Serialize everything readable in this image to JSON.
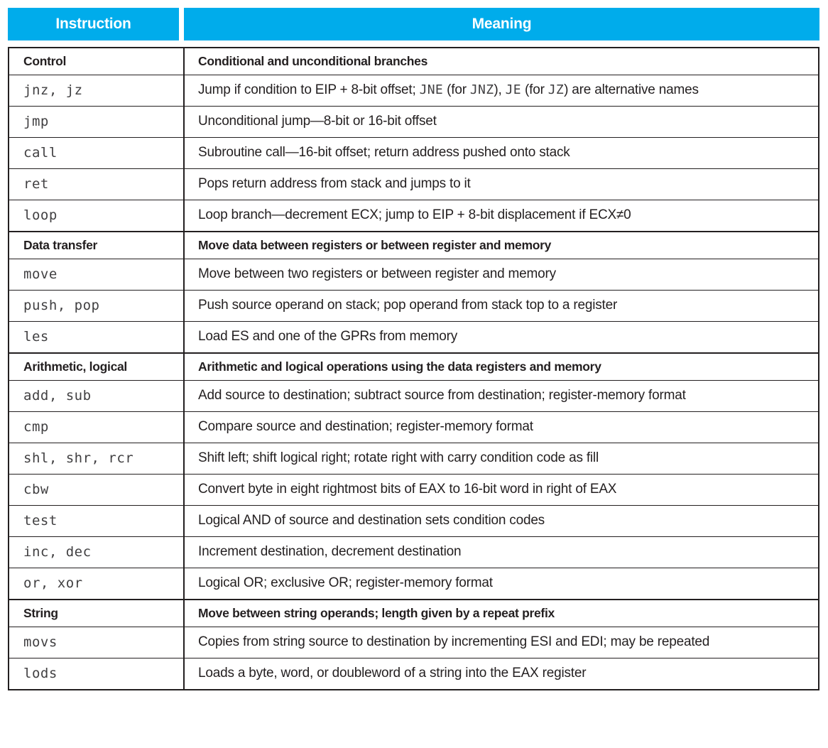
{
  "colors": {
    "header_bg": "#00aceb",
    "header_text": "#ffffff",
    "border": "#231f20",
    "body_text": "#231f20",
    "mono_text": "#414042"
  },
  "table": {
    "header": {
      "instruction": "Instruction",
      "meaning": "Meaning"
    },
    "rows": [
      {
        "kind": "section",
        "instruction": "Control",
        "meaning": [
          {
            "text": "Conditional and unconditional branches"
          }
        ]
      },
      {
        "kind": "row",
        "instruction": "jnz, jz",
        "meaning": [
          {
            "text": "Jump if condition to EIP + 8-bit offset; "
          },
          {
            "code": "JNE"
          },
          {
            "text": " (for "
          },
          {
            "code": "JNZ"
          },
          {
            "text": "), "
          },
          {
            "code": "JE"
          },
          {
            "text": " (for "
          },
          {
            "code": "JZ"
          },
          {
            "text": ") are alternative names"
          }
        ]
      },
      {
        "kind": "row",
        "instruction": "jmp",
        "meaning": [
          {
            "text": "Unconditional jump—8-bit or 16-bit offset"
          }
        ]
      },
      {
        "kind": "row",
        "instruction": "call",
        "meaning": [
          {
            "text": "Subroutine call—16-bit offset; return address pushed onto stack"
          }
        ]
      },
      {
        "kind": "row",
        "instruction": "ret",
        "meaning": [
          {
            "text": "Pops return address from stack and jumps to it"
          }
        ]
      },
      {
        "kind": "row",
        "instruction": "loop",
        "meaning": [
          {
            "text": "Loop branch—decrement ECX; jump to EIP + 8-bit displacement if ECX≠0"
          }
        ]
      },
      {
        "kind": "section",
        "instruction": "Data transfer",
        "meaning": [
          {
            "text": "Move data between registers or between register and memory"
          }
        ]
      },
      {
        "kind": "row",
        "instruction": "move",
        "meaning": [
          {
            "text": "Move between two registers or between register and memory"
          }
        ]
      },
      {
        "kind": "row",
        "instruction": "push, pop",
        "meaning": [
          {
            "text": "Push source operand on stack; pop operand from stack top to a register"
          }
        ]
      },
      {
        "kind": "row",
        "instruction": "les",
        "meaning": [
          {
            "text": "Load ES and one of the GPRs from memory"
          }
        ]
      },
      {
        "kind": "section",
        "instruction": "Arithmetic, logical",
        "meaning": [
          {
            "text": "Arithmetic and logical operations using the data registers and memory"
          }
        ]
      },
      {
        "kind": "row",
        "instruction": "add, sub",
        "meaning": [
          {
            "text": "Add source to destination; subtract source from destination; register-memory format"
          }
        ]
      },
      {
        "kind": "row",
        "instruction": "cmp",
        "meaning": [
          {
            "text": "Compare source and destination; register-memory format"
          }
        ]
      },
      {
        "kind": "row",
        "instruction": "shl, shr, rcr",
        "meaning": [
          {
            "text": "Shift left; shift logical right; rotate right with carry condition code as fill"
          }
        ]
      },
      {
        "kind": "row",
        "instruction": "cbw",
        "meaning": [
          {
            "text": "Convert byte in eight rightmost bits of EAX to 16-bit word in right of EAX"
          }
        ]
      },
      {
        "kind": "row",
        "instruction": "test",
        "meaning": [
          {
            "text": "Logical AND of source and destination sets condition codes"
          }
        ]
      },
      {
        "kind": "row",
        "instruction": "inc, dec",
        "meaning": [
          {
            "text": "Increment destination, decrement destination"
          }
        ]
      },
      {
        "kind": "row",
        "instruction": "or, xor",
        "meaning": [
          {
            "text": "Logical OR; exclusive OR; register-memory format"
          }
        ]
      },
      {
        "kind": "section",
        "instruction": "String",
        "meaning": [
          {
            "text": "Move between string operands; length given by a repeat prefix"
          }
        ]
      },
      {
        "kind": "row",
        "instruction": "movs",
        "meaning": [
          {
            "text": "Copies from string source to destination by incrementing ESI and EDI; may be repeated"
          }
        ]
      },
      {
        "kind": "row",
        "instruction": "lods",
        "meaning": [
          {
            "text": "Loads a byte, word, or doubleword of a string into the EAX register"
          }
        ]
      }
    ]
  }
}
